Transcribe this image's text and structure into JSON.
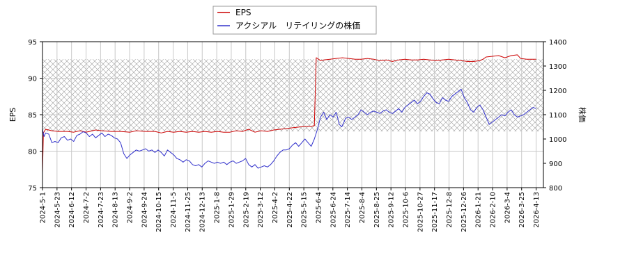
{
  "chart_data": {
    "type": "line",
    "legend": {
      "position": "top-center",
      "entries": [
        "EPS",
        "アクシアル　リテイリングの株価"
      ]
    },
    "y_left": {
      "label": "EPS",
      "range": [
        75,
        95
      ],
      "ticks": [
        "75",
        "80",
        "85",
        "90",
        "95"
      ]
    },
    "y_right": {
      "label": "株価",
      "range": [
        800,
        1400
      ],
      "ticks": [
        "800",
        "900",
        "1000",
        "1100",
        "1200",
        "1300",
        "1400"
      ]
    },
    "x_ticks": [
      "2024-5-1",
      "2024-5-23",
      "2024-6-12",
      "2024-7-2",
      "2024-7-23",
      "2024-8-13",
      "2024-9-2",
      "2024-9-24",
      "2024-10-15",
      "2024-11-5",
      "2024-11-25",
      "2024-12-13",
      "2025-1-8",
      "2025-1-29",
      "2025-2-19",
      "2025-3-12",
      "2025-4-2",
      "2025-4-22",
      "2025-5-15",
      "2025-6-4",
      "2025-6-24",
      "2025-7-14",
      "2025-8-4",
      "2025-8-25",
      "2025-9-12",
      "2025-10-6",
      "2025-10-27",
      "2025-11-17",
      "2025-12-8",
      "2025-12-26",
      "2026-1-21",
      "2026-2-10",
      "2026-3-4",
      "2026-3-25",
      "2026-4-13"
    ],
    "grid": true,
    "hatched_band": {
      "y_left_range": [
        82.7,
        92.6
      ]
    },
    "series": [
      {
        "name": "EPS",
        "axis": "left",
        "color": "#cc0000",
        "points": [
          [
            0,
            77.0
          ],
          [
            0.3,
            82.5
          ],
          [
            1,
            83.0
          ],
          [
            3,
            82.8
          ],
          [
            5,
            82.7
          ],
          [
            8,
            82.7
          ],
          [
            10,
            82.6
          ],
          [
            12,
            82.8
          ],
          [
            14,
            82.6
          ],
          [
            17,
            82.9
          ],
          [
            19,
            82.8
          ],
          [
            22,
            82.7
          ],
          [
            25,
            82.7
          ],
          [
            28,
            82.6
          ],
          [
            30,
            82.8
          ],
          [
            33,
            82.7
          ],
          [
            36,
            82.7
          ],
          [
            38,
            82.5
          ],
          [
            40,
            82.7
          ],
          [
            42,
            82.6
          ],
          [
            44,
            82.7
          ],
          [
            46,
            82.6
          ],
          [
            48,
            82.7
          ],
          [
            50,
            82.6
          ],
          [
            52,
            82.7
          ],
          [
            54,
            82.6
          ],
          [
            56,
            82.7
          ],
          [
            58,
            82.6
          ],
          [
            60,
            82.6
          ],
          [
            62,
            82.8
          ],
          [
            64,
            82.7
          ],
          [
            66,
            83.0
          ],
          [
            68,
            82.6
          ],
          [
            70,
            82.8
          ],
          [
            72,
            82.7
          ],
          [
            74,
            82.9
          ],
          [
            76,
            83.0
          ],
          [
            78,
            83.1
          ],
          [
            80,
            83.2
          ],
          [
            82,
            83.3
          ],
          [
            84,
            83.4
          ],
          [
            86,
            83.4
          ],
          [
            87,
            83.5
          ],
          [
            87.6,
            92.8
          ],
          [
            88,
            92.7
          ],
          [
            89,
            92.4
          ],
          [
            90,
            92.5
          ],
          [
            92,
            92.6
          ],
          [
            94,
            92.7
          ],
          [
            96,
            92.8
          ],
          [
            98,
            92.7
          ],
          [
            100,
            92.6
          ],
          [
            102,
            92.6
          ],
          [
            104,
            92.7
          ],
          [
            106,
            92.6
          ],
          [
            108,
            92.4
          ],
          [
            110,
            92.5
          ],
          [
            112,
            92.3
          ],
          [
            114,
            92.5
          ],
          [
            116,
            92.6
          ],
          [
            118,
            92.5
          ],
          [
            120,
            92.5
          ],
          [
            122,
            92.6
          ],
          [
            124,
            92.5
          ],
          [
            126,
            92.4
          ],
          [
            128,
            92.5
          ],
          [
            130,
            92.6
          ],
          [
            132,
            92.5
          ],
          [
            134,
            92.4
          ],
          [
            136,
            92.3
          ],
          [
            138,
            92.3
          ],
          [
            140,
            92.4
          ],
          [
            141,
            92.6
          ],
          [
            142,
            92.9
          ],
          [
            144,
            93.0
          ],
          [
            146,
            93.1
          ],
          [
            148,
            92.8
          ],
          [
            150,
            93.1
          ],
          [
            152,
            93.2
          ],
          [
            153,
            92.7
          ],
          [
            155,
            92.6
          ],
          [
            157,
            92.6
          ],
          [
            158,
            92.6
          ]
        ]
      },
      {
        "name": "アクシアル　リテイリングの株価",
        "axis": "right",
        "color": "#3333cc",
        "points": [
          [
            0,
            1040
          ],
          [
            0.5,
            1010
          ],
          [
            1,
            1025
          ],
          [
            2,
            1020
          ],
          [
            3,
            985
          ],
          [
            4,
            990
          ],
          [
            5,
            985
          ],
          [
            6,
            1005
          ],
          [
            7,
            1010
          ],
          [
            8,
            995
          ],
          [
            9,
            1000
          ],
          [
            10,
            990
          ],
          [
            11,
            1015
          ],
          [
            12,
            1020
          ],
          [
            13,
            1030
          ],
          [
            14,
            1025
          ],
          [
            15,
            1010
          ],
          [
            16,
            1020
          ],
          [
            17,
            1005
          ],
          [
            18,
            1015
          ],
          [
            19,
            1025
          ],
          [
            20,
            1010
          ],
          [
            21,
            1020
          ],
          [
            22,
            1015
          ],
          [
            23,
            1005
          ],
          [
            24,
            1000
          ],
          [
            25,
            985
          ],
          [
            26,
            940
          ],
          [
            27,
            920
          ],
          [
            28,
            935
          ],
          [
            29,
            945
          ],
          [
            30,
            955
          ],
          [
            31,
            950
          ],
          [
            32,
            955
          ],
          [
            33,
            960
          ],
          [
            34,
            950
          ],
          [
            35,
            955
          ],
          [
            36,
            945
          ],
          [
            37,
            955
          ],
          [
            38,
            945
          ],
          [
            39,
            930
          ],
          [
            40,
            955
          ],
          [
            41,
            945
          ],
          [
            42,
            935
          ],
          [
            43,
            920
          ],
          [
            44,
            915
          ],
          [
            45,
            905
          ],
          [
            46,
            915
          ],
          [
            47,
            910
          ],
          [
            48,
            895
          ],
          [
            49,
            890
          ],
          [
            50,
            895
          ],
          [
            51,
            885
          ],
          [
            52,
            900
          ],
          [
            53,
            910
          ],
          [
            54,
            905
          ],
          [
            55,
            900
          ],
          [
            56,
            905
          ],
          [
            57,
            900
          ],
          [
            58,
            905
          ],
          [
            59,
            895
          ],
          [
            60,
            905
          ],
          [
            61,
            910
          ],
          [
            62,
            900
          ],
          [
            63,
            905
          ],
          [
            64,
            910
          ],
          [
            65,
            920
          ],
          [
            66,
            895
          ],
          [
            67,
            885
          ],
          [
            68,
            895
          ],
          [
            69,
            880
          ],
          [
            70,
            885
          ],
          [
            71,
            890
          ],
          [
            72,
            885
          ],
          [
            73,
            895
          ],
          [
            74,
            910
          ],
          [
            75,
            930
          ],
          [
            76,
            945
          ],
          [
            77,
            955
          ],
          [
            78,
            955
          ],
          [
            79,
            960
          ],
          [
            80,
            975
          ],
          [
            81,
            985
          ],
          [
            82,
            970
          ],
          [
            83,
            985
          ],
          [
            84,
            1000
          ],
          [
            85,
            985
          ],
          [
            86,
            970
          ],
          [
            87,
            1000
          ],
          [
            88,
            1040
          ],
          [
            89,
            1090
          ],
          [
            90,
            1110
          ],
          [
            91,
            1080
          ],
          [
            92,
            1100
          ],
          [
            93,
            1090
          ],
          [
            94,
            1110
          ],
          [
            95,
            1060
          ],
          [
            95.8,
            1050
          ],
          [
            96.5,
            1070
          ],
          [
            97,
            1085
          ],
          [
            98,
            1090
          ],
          [
            99,
            1080
          ],
          [
            100,
            1090
          ],
          [
            101,
            1100
          ],
          [
            102,
            1120
          ],
          [
            103,
            1110
          ],
          [
            104,
            1100
          ],
          [
            105,
            1110
          ],
          [
            106,
            1115
          ],
          [
            107,
            1110
          ],
          [
            108,
            1105
          ],
          [
            109,
            1115
          ],
          [
            110,
            1120
          ],
          [
            111,
            1110
          ],
          [
            112,
            1105
          ],
          [
            113,
            1115
          ],
          [
            114,
            1125
          ],
          [
            115,
            1110
          ],
          [
            116,
            1130
          ],
          [
            117,
            1140
          ],
          [
            118,
            1150
          ],
          [
            119,
            1160
          ],
          [
            120,
            1145
          ],
          [
            121,
            1155
          ],
          [
            122,
            1175
          ],
          [
            123,
            1190
          ],
          [
            124,
            1185
          ],
          [
            125,
            1165
          ],
          [
            126,
            1150
          ],
          [
            127,
            1145
          ],
          [
            128,
            1170
          ],
          [
            129,
            1160
          ],
          [
            130,
            1155
          ],
          [
            131,
            1175
          ],
          [
            132,
            1185
          ],
          [
            133,
            1195
          ],
          [
            134,
            1205
          ],
          [
            135,
            1170
          ],
          [
            136,
            1150
          ],
          [
            137,
            1120
          ],
          [
            138,
            1110
          ],
          [
            139,
            1130
          ],
          [
            140,
            1140
          ],
          [
            141,
            1120
          ],
          [
            142,
            1090
          ],
          [
            143,
            1060
          ],
          [
            144,
            1070
          ],
          [
            145,
            1080
          ],
          [
            146,
            1090
          ],
          [
            147,
            1100
          ],
          [
            148,
            1095
          ],
          [
            149,
            1110
          ],
          [
            150,
            1120
          ],
          [
            151,
            1100
          ],
          [
            152,
            1090
          ],
          [
            153,
            1095
          ],
          [
            154,
            1100
          ],
          [
            155,
            1110
          ],
          [
            156,
            1120
          ],
          [
            157,
            1130
          ],
          [
            158,
            1125
          ]
        ]
      }
    ]
  }
}
